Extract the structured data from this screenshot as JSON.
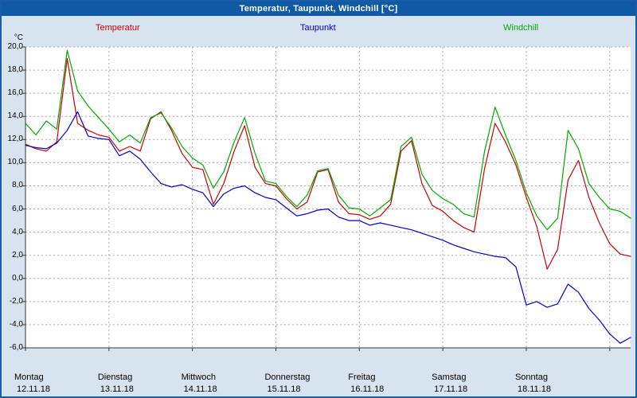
{
  "window": {
    "title": "Temperatur, Taupunkt, Windchill [°C]"
  },
  "legend": [
    {
      "label": "Temperatur",
      "color": "#cc0000"
    },
    {
      "label": "Taupunkt",
      "color": "#0000cc"
    },
    {
      "label": "Windchill",
      "color": "#00aa00"
    }
  ],
  "y_axis": {
    "unit_label": "°C",
    "tick_values": [
      20,
      18,
      16,
      14,
      12,
      10,
      8,
      6,
      4,
      2,
      0,
      -2,
      -4,
      -6
    ],
    "tick_labels": [
      "20,0",
      "18,0",
      "16,0",
      "14,0",
      "12,0",
      "10,0",
      "8,0",
      "6,0",
      "4,0",
      "2,0",
      "0,0",
      "-2,0",
      "-4,0",
      "-6,0"
    ]
  },
  "x_axis": {
    "days": [
      {
        "name": "Montag",
        "date": "12.11.18"
      },
      {
        "name": "Dienstag",
        "date": "13.11.18"
      },
      {
        "name": "Mittwoch",
        "date": "14.11.18"
      },
      {
        "name": "Donnerstag",
        "date": "15.11.18"
      },
      {
        "name": "Freitag",
        "date": "16.11.18"
      },
      {
        "name": "Samstag",
        "date": "17.11.18"
      },
      {
        "name": "Sonntag",
        "date": "18.11.18"
      }
    ]
  },
  "colors": {
    "titlebar": "#0f59a5",
    "window_background": "#d7e3ef",
    "plot_background": "#ffffff",
    "grid": "#a8a8a8",
    "axis": "#333333"
  },
  "chart_data": {
    "type": "line",
    "title": "Temperatur, Taupunkt, Windchill [°C]",
    "x_unit": "hours since 12.11.18 00:00",
    "x_step_hours": 3,
    "x_range": [
      0,
      174
    ],
    "ylim": [
      -6,
      20
    ],
    "grid": "dashed",
    "legend_position": "top",
    "day_boundaries_hours": [
      0,
      24,
      48,
      72,
      96,
      120,
      144,
      168
    ],
    "series": [
      {
        "name": "Temperatur",
        "color": "#cc0000",
        "values": [
          11.6,
          11.2,
          11.0,
          11.8,
          19.0,
          13.4,
          12.8,
          12.4,
          12.2,
          11.0,
          11.4,
          11.0,
          13.8,
          14.4,
          12.8,
          10.8,
          9.6,
          9.4,
          6.4,
          8.2,
          11.0,
          13.2,
          9.6,
          8.2,
          8.0,
          6.9,
          6.0,
          6.6,
          9.2,
          9.4,
          6.6,
          5.6,
          5.5,
          5.1,
          5.4,
          6.4,
          11.0,
          11.9,
          8.2,
          6.3,
          5.8,
          5.0,
          4.4,
          4.0,
          9.5,
          13.4,
          11.8,
          9.8,
          7.0,
          4.5,
          0.8,
          2.5,
          8.5,
          10.2,
          7.0,
          4.8,
          3.0,
          2.1,
          1.9
        ]
      },
      {
        "name": "Taupunkt",
        "color": "#0000cc",
        "values": [
          11.5,
          11.3,
          11.2,
          11.7,
          12.8,
          14.4,
          12.3,
          12.1,
          12.0,
          10.6,
          11.0,
          10.3,
          9.2,
          8.2,
          7.9,
          8.1,
          7.7,
          7.4,
          6.2,
          7.3,
          7.8,
          8.0,
          7.4,
          7.0,
          6.8,
          6.1,
          5.4,
          5.6,
          5.9,
          6.0,
          5.3,
          5.0,
          5.0,
          4.6,
          4.8,
          4.6,
          4.4,
          4.2,
          3.9,
          3.6,
          3.3,
          2.9,
          2.6,
          2.3,
          2.1,
          1.9,
          1.8,
          1.0,
          -2.3,
          -2.0,
          -2.5,
          -2.2,
          -0.5,
          -1.2,
          -2.6,
          -3.6,
          -4.8,
          -5.6,
          -5.1
        ]
      },
      {
        "name": "Windchill",
        "color": "#00aa00",
        "values": [
          13.4,
          12.4,
          13.6,
          12.9,
          19.7,
          16.2,
          14.9,
          13.9,
          12.9,
          11.8,
          12.4,
          11.7,
          13.9,
          14.3,
          13.0,
          11.4,
          10.4,
          9.8,
          7.8,
          9.2,
          11.8,
          13.9,
          10.8,
          8.4,
          8.2,
          7.1,
          6.2,
          7.2,
          9.3,
          9.5,
          7.2,
          6.1,
          6.0,
          5.4,
          6.1,
          6.8,
          11.4,
          12.2,
          9.0,
          7.6,
          6.9,
          6.4,
          5.6,
          5.3,
          11.0,
          14.8,
          12.4,
          10.2,
          7.4,
          5.4,
          4.2,
          5.2,
          12.8,
          11.2,
          8.2,
          7.0,
          6.0,
          5.8,
          5.2
        ]
      }
    ]
  }
}
